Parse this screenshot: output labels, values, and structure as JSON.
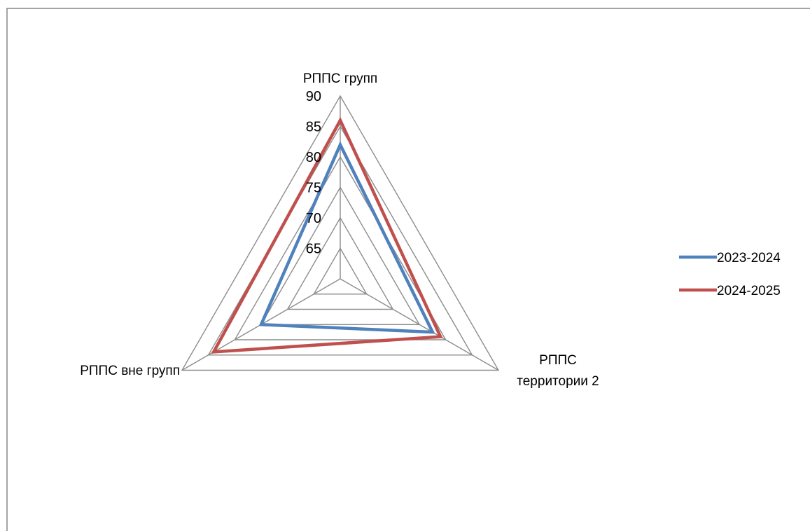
{
  "chart_data": {
    "type": "radar",
    "categories": [
      "РППС групп",
      "РППС территории 2",
      "РППС вне групп"
    ],
    "category_label_lines": [
      [
        "РППС групп"
      ],
      [
        "РППС",
        "территории 2"
      ],
      [
        "РППС вне групп"
      ]
    ],
    "series": [
      {
        "name": "2023-2024",
        "values": [
          82,
          77.5,
          75
        ]
      },
      {
        "name": "2024-2025",
        "values": [
          86,
          79,
          84
        ]
      }
    ],
    "rmin": 60,
    "rmax": 90,
    "ticks": [
      65,
      70,
      75,
      80,
      85,
      90
    ],
    "grid": true,
    "legend_position": "right"
  },
  "colors": {
    "series": [
      "#4F81BD",
      "#C0504D"
    ],
    "grid": "#8C8C8C",
    "frame": "#868686"
  }
}
